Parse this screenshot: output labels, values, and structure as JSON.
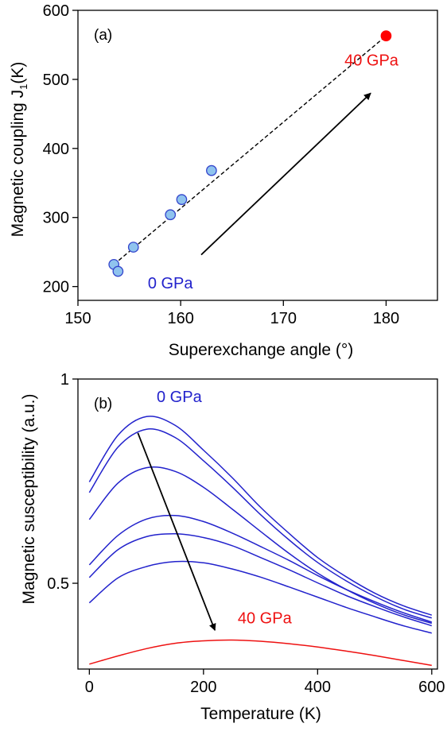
{
  "chart_data": [
    {
      "type": "scatter",
      "panel_label": "(a)",
      "xlabel": "Superexchange angle (°)",
      "ylabel_main": "Magnetic coupling J",
      "ylabel_sub": "1",
      "ylabel_unit": "(K)",
      "xlim": [
        150,
        185
      ],
      "ylim": [
        180,
        600
      ],
      "xticks": [
        150,
        160,
        170,
        180
      ],
      "yticks": [
        200,
        300,
        400,
        500,
        600
      ],
      "grid": false,
      "series": [
        {
          "color": "#3344cc",
          "fill": "#8fc3ee",
          "points": [
            {
              "x": 153.5,
              "y": 232
            },
            {
              "x": 153.9,
              "y": 222
            },
            {
              "x": 155.4,
              "y": 257
            },
            {
              "x": 159.0,
              "y": 304
            },
            {
              "x": 160.1,
              "y": 326
            },
            {
              "x": 163.0,
              "y": 368
            }
          ]
        },
        {
          "color": "#ff0000",
          "fill": "#ff0000",
          "points": [
            {
              "x": 180.0,
              "y": 563
            }
          ]
        }
      ],
      "fit_line": {
        "x": [
          153.5,
          180.0
        ],
        "y": [
          232,
          563
        ]
      },
      "arrow": {
        "from": {
          "x": 162.0,
          "y": 246
        },
        "to": {
          "x": 178.5,
          "y": 480
        }
      },
      "annotations": [
        {
          "text": "0 GPa",
          "x": 156.8,
          "y": 197,
          "color": "#2222cc"
        },
        {
          "text": "40 GPa",
          "x": 181.2,
          "y": 520,
          "color": "#ee1111"
        }
      ]
    },
    {
      "type": "line",
      "panel_label": "(b)",
      "xlabel": "Temperature (K)",
      "ylabel": "Magnetic susceptibility (a.u.)",
      "xlim": [
        -20,
        610
      ],
      "ylim": [
        0.29,
        1.0
      ],
      "xticks": [
        0,
        200,
        400,
        600
      ],
      "yticks": [
        0.5,
        1
      ],
      "ytick_labels": [
        "0.5",
        "1"
      ],
      "grid": false,
      "series": [
        {
          "color": "#2222cc",
          "x": [
            0,
            50,
            100,
            150,
            200,
            250,
            300,
            350,
            400,
            450,
            500,
            550,
            600
          ],
          "y": [
            0.748,
            0.862,
            0.908,
            0.887,
            0.826,
            0.759,
            0.686,
            0.622,
            0.563,
            0.516,
            0.476,
            0.445,
            0.422
          ]
        },
        {
          "color": "#2222cc",
          "x": [
            0,
            50,
            100,
            150,
            200,
            250,
            300,
            350,
            400,
            450,
            500,
            550,
            600
          ],
          "y": [
            0.722,
            0.833,
            0.877,
            0.857,
            0.8,
            0.736,
            0.668,
            0.606,
            0.551,
            0.506,
            0.468,
            0.437,
            0.415
          ]
        },
        {
          "color": "#2222cc",
          "x": [
            0,
            50,
            100,
            150,
            200,
            250,
            300,
            350,
            400,
            450,
            500,
            550,
            600
          ],
          "y": [
            0.656,
            0.745,
            0.783,
            0.774,
            0.735,
            0.682,
            0.627,
            0.573,
            0.525,
            0.485,
            0.451,
            0.423,
            0.402
          ]
        },
        {
          "color": "#2222cc",
          "x": [
            0,
            50,
            100,
            150,
            200,
            250,
            300,
            350,
            400,
            450,
            500,
            550,
            600
          ],
          "y": [
            0.545,
            0.617,
            0.657,
            0.666,
            0.651,
            0.623,
            0.59,
            0.556,
            0.519,
            0.485,
            0.455,
            0.428,
            0.405
          ]
        },
        {
          "color": "#2222cc",
          "x": [
            0,
            50,
            100,
            150,
            200,
            250,
            300,
            350,
            400,
            450,
            500,
            550,
            600
          ],
          "y": [
            0.514,
            0.582,
            0.614,
            0.621,
            0.612,
            0.592,
            0.563,
            0.533,
            0.501,
            0.47,
            0.443,
            0.418,
            0.396
          ]
        },
        {
          "color": "#2222cc",
          "x": [
            0,
            50,
            100,
            150,
            200,
            250,
            300,
            350,
            400,
            450,
            500,
            550,
            600
          ],
          "y": [
            0.452,
            0.513,
            0.541,
            0.553,
            0.55,
            0.535,
            0.515,
            0.491,
            0.466,
            0.441,
            0.418,
            0.396,
            0.378
          ]
        },
        {
          "color": "#ee1111",
          "x": [
            0,
            50,
            100,
            150,
            200,
            250,
            300,
            350,
            400,
            450,
            500,
            550,
            600
          ],
          "y": [
            0.302,
            0.322,
            0.34,
            0.353,
            0.359,
            0.361,
            0.358,
            0.352,
            0.344,
            0.334,
            0.323,
            0.311,
            0.299
          ]
        }
      ],
      "arrow": {
        "from": {
          "x": 85,
          "y": 0.868
        },
        "to": {
          "x": 220,
          "y": 0.385
        }
      },
      "annotations": [
        {
          "text": "0 GPa",
          "x": 118,
          "y": 0.944,
          "color": "#2222cc"
        },
        {
          "text": "40 GPa",
          "x": 260,
          "y": 0.402,
          "color": "#ee1111"
        }
      ]
    }
  ]
}
